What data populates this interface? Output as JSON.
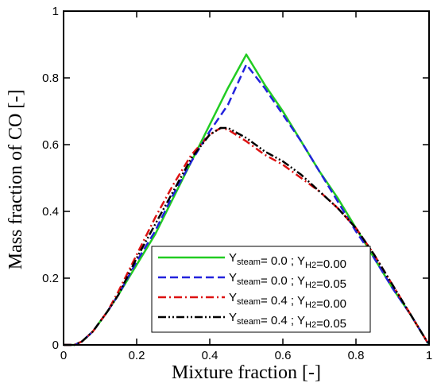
{
  "chart_data": {
    "type": "line",
    "title": "",
    "xlabel": "Mixture fraction [-]",
    "ylabel": "Mass fraction of CO [-]",
    "xlim": [
      0,
      1
    ],
    "ylim": [
      0,
      1
    ],
    "xticks": [
      "0",
      "0.2",
      "0.4",
      "0.6",
      "0.8",
      "1"
    ],
    "yticks": [
      "0",
      "0.2",
      "0.4",
      "0.6",
      "0.8",
      "1"
    ],
    "xtick_values": [
      0,
      0.2,
      0.4,
      0.6,
      0.8,
      1
    ],
    "ytick_values": [
      0,
      0.2,
      0.4,
      0.6,
      0.8,
      1
    ],
    "grid": false,
    "legend_position": "bottom-right",
    "series": [
      {
        "name": "Y_steam= 0.0 ; Y_H2=0.00",
        "legend": {
          "pre": "Y",
          "sub1": "steam",
          "mid": "= 0.0 ; Y",
          "sub2": "H2",
          "post": "=0.00"
        },
        "color": "#22cc22",
        "style": "solid",
        "x": [
          0,
          0.03,
          0.05,
          0.08,
          0.12,
          0.15,
          0.2,
          0.25,
          0.3,
          0.35,
          0.4,
          0.45,
          0.5,
          0.55,
          0.6,
          0.65,
          0.7,
          0.75,
          0.8,
          0.85,
          0.9,
          0.95,
          1.0
        ],
        "y": [
          0,
          0.0,
          0.01,
          0.04,
          0.1,
          0.15,
          0.24,
          0.33,
          0.44,
          0.55,
          0.66,
          0.77,
          0.87,
          0.78,
          0.7,
          0.61,
          0.52,
          0.44,
          0.35,
          0.26,
          0.17,
          0.09,
          0.0
        ]
      },
      {
        "name": "Y_steam= 0.0 ; Y_H2=0.05",
        "legend": {
          "pre": "Y",
          "sub1": "steam",
          "mid": "= 0.0 ; Y",
          "sub2": "H2",
          "post": "=0.05"
        },
        "color": "#2222dd",
        "style": "dashed",
        "x": [
          0,
          0.03,
          0.05,
          0.08,
          0.12,
          0.15,
          0.2,
          0.25,
          0.3,
          0.35,
          0.4,
          0.45,
          0.5,
          0.55,
          0.6,
          0.65,
          0.7,
          0.75,
          0.8,
          0.85,
          0.9,
          0.95,
          1.0
        ],
        "y": [
          0,
          0.0,
          0.01,
          0.04,
          0.1,
          0.15,
          0.25,
          0.34,
          0.45,
          0.55,
          0.64,
          0.72,
          0.84,
          0.77,
          0.69,
          0.61,
          0.52,
          0.43,
          0.34,
          0.26,
          0.17,
          0.09,
          0.0
        ]
      },
      {
        "name": "Y_steam= 0.4 ; Y_H2=0.00",
        "legend": {
          "pre": "Y",
          "sub1": "steam",
          "mid": "= 0.4 ; Y",
          "sub2": "H2",
          "post": "=0.00"
        },
        "color": "#dd1111",
        "style": "dashdot",
        "x": [
          0,
          0.03,
          0.05,
          0.08,
          0.12,
          0.15,
          0.2,
          0.25,
          0.3,
          0.35,
          0.4,
          0.43,
          0.45,
          0.5,
          0.55,
          0.6,
          0.65,
          0.7,
          0.75,
          0.8,
          0.85,
          0.9,
          0.95,
          1.0
        ],
        "y": [
          0,
          0.0,
          0.01,
          0.04,
          0.1,
          0.16,
          0.27,
          0.38,
          0.48,
          0.57,
          0.63,
          0.65,
          0.645,
          0.61,
          0.57,
          0.54,
          0.5,
          0.46,
          0.41,
          0.35,
          0.27,
          0.18,
          0.09,
          0.0
        ]
      },
      {
        "name": "Y_steam= 0.4 ; Y_H2=0.05",
        "legend": {
          "pre": "Y",
          "sub1": "steam",
          "mid": "= 0.4 ; Y",
          "sub2": "H2",
          "post": "=0.05"
        },
        "color": "#000000",
        "style": "dashdotdot",
        "x": [
          0,
          0.03,
          0.05,
          0.08,
          0.12,
          0.15,
          0.2,
          0.25,
          0.3,
          0.35,
          0.4,
          0.43,
          0.45,
          0.5,
          0.55,
          0.6,
          0.65,
          0.7,
          0.75,
          0.8,
          0.85,
          0.9,
          0.95,
          1.0
        ],
        "y": [
          0,
          0.0,
          0.01,
          0.04,
          0.1,
          0.15,
          0.26,
          0.36,
          0.46,
          0.56,
          0.63,
          0.65,
          0.65,
          0.62,
          0.58,
          0.55,
          0.51,
          0.46,
          0.41,
          0.35,
          0.27,
          0.18,
          0.09,
          0.0
        ]
      }
    ]
  }
}
